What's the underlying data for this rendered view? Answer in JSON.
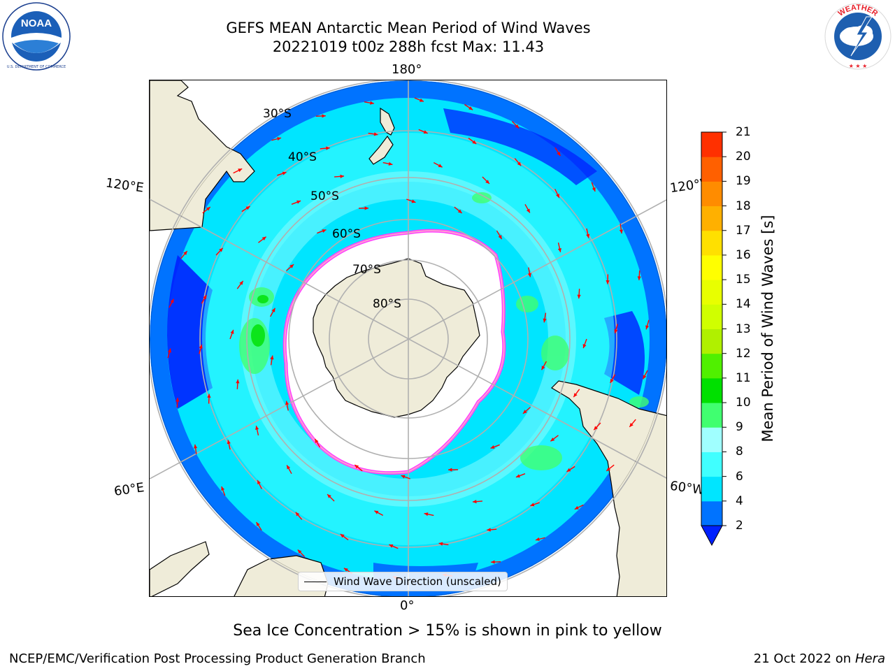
{
  "header": {
    "title_line1": "GEFS MEAN Antarctic Mean Period of Wind Waves",
    "title_line2": "20221019 t00z 288h fcst   Max: 11.43"
  },
  "logos": {
    "left": {
      "icon": "noaa-logo-icon",
      "text": "NOAA",
      "ring_text": "NATIONAL OCEANIC AND ATMOSPHERIC ADMINISTRATION · U.S. DEPARTMENT OF COMMERCE"
    },
    "right": {
      "icon": "nws-logo-icon",
      "ring_text": "NATIONAL WEATHER SERVICE"
    }
  },
  "map": {
    "projection": "south-polar-stereographic",
    "longitude_labels": {
      "top": "180°",
      "bottom": "0°",
      "left_upper": "120°E",
      "left_lower": "60°E",
      "right_upper": "120°W",
      "right_lower": "60°W"
    },
    "latitude_labels": [
      "30°S",
      "40°S",
      "50°S",
      "60°S",
      "70°S",
      "80°S"
    ],
    "legend_label": "Wind Wave Direction (unscaled)",
    "colors": {
      "land": "#efecd9",
      "sea_ice_edge": [
        "#ff40ff",
        "#ff9fd0",
        "#ffb000",
        "#ffff40"
      ],
      "arrow": "#ff0000",
      "grid": "#b0b0b0"
    },
    "max_value": 11.43
  },
  "colorbar": {
    "label": "Mean Period of Wind Waves [s]",
    "ticks": [
      "2",
      "4",
      "6",
      "8",
      "9",
      "10",
      "11",
      "12",
      "13",
      "14",
      "15",
      "16",
      "17",
      "18",
      "19",
      "20",
      "21"
    ],
    "colors": [
      "#0073ff",
      "#00e5ff",
      "#40ffff",
      "#a0ffff",
      "#40ff70",
      "#00e000",
      "#50f000",
      "#b0f000",
      "#d0ff00",
      "#e8ff00",
      "#ffff00",
      "#ffe000",
      "#ffb000",
      "#ff8c00",
      "#ff6000",
      "#ff3000",
      "#ff0000"
    ],
    "under_color": "#0020ff",
    "extend": "min"
  },
  "footer": {
    "note": "Sea Ice Concentration > 15% is shown in pink to yellow",
    "left": "NCEP/EMC/Verification Post Processing Product Generation Branch",
    "right_prefix": "21 Oct 2022 on ",
    "right_machine": "Hera"
  }
}
